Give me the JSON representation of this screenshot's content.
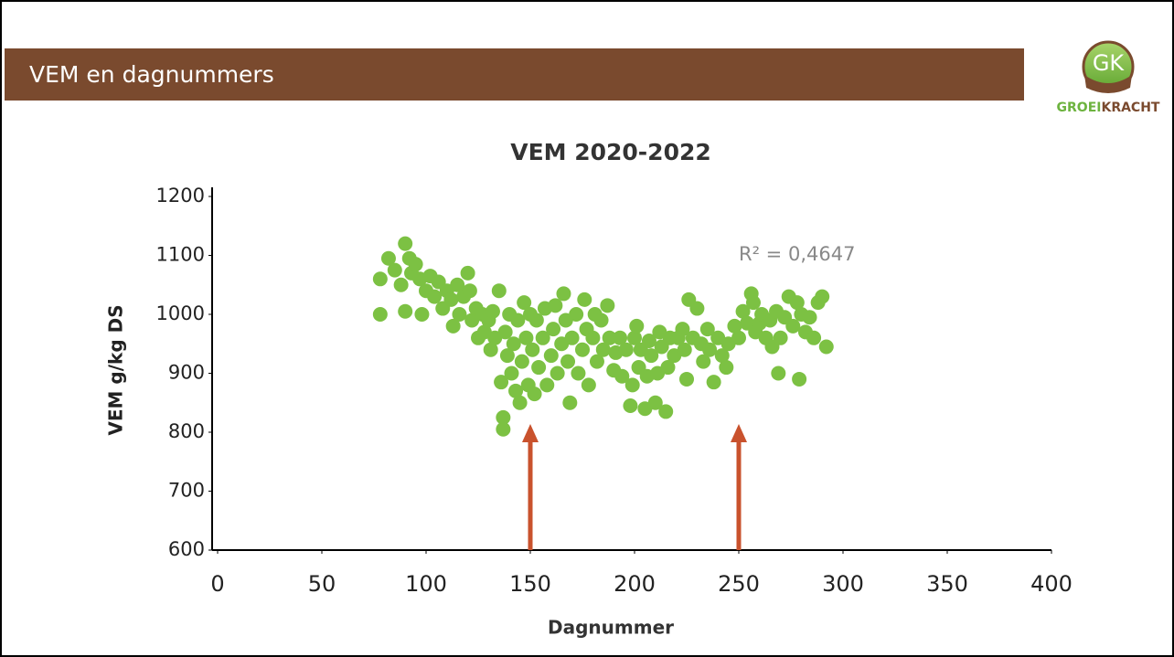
{
  "header": {
    "title": "VEM en dagnummers"
  },
  "logo": {
    "mark": "GK",
    "parts": [
      "GROEI",
      "KRACHT"
    ]
  },
  "chart_data": {
    "type": "scatter",
    "title": "VEM 2020-2022",
    "x_label": "Dagnummer",
    "y_label": "VEM g/kg DS",
    "annotation": "R² = 0,4647",
    "color": "#7cc143",
    "arrow_color": "#c9522d",
    "arrows_x": [
      150,
      250
    ],
    "xlim": [
      0,
      400
    ],
    "xticks": [
      0,
      50,
      100,
      150,
      200,
      250,
      300,
      350,
      400
    ],
    "ylim": [
      600,
      1200
    ],
    "yticks": [
      600,
      700,
      800,
      900,
      1000,
      1100,
      1200
    ],
    "x": [
      78,
      78,
      82,
      85,
      88,
      90,
      90,
      92,
      93,
      95,
      97,
      98,
      100,
      102,
      104,
      106,
      108,
      110,
      112,
      113,
      115,
      116,
      118,
      120,
      121,
      122,
      124,
      125,
      127,
      128,
      130,
      131,
      132,
      133,
      135,
      136,
      137,
      137,
      138,
      139,
      140,
      141,
      142,
      143,
      144,
      145,
      146,
      147,
      148,
      149,
      150,
      151,
      152,
      153,
      154,
      156,
      157,
      158,
      160,
      161,
      162,
      163,
      165,
      166,
      167,
      168,
      169,
      170,
      172,
      173,
      175,
      176,
      177,
      178,
      180,
      181,
      182,
      184,
      185,
      187,
      188,
      190,
      191,
      193,
      194,
      196,
      198,
      199,
      200,
      201,
      202,
      203,
      205,
      206,
      207,
      208,
      210,
      211,
      212,
      213,
      215,
      216,
      217,
      219,
      221,
      223,
      224,
      225,
      226,
      228,
      230,
      232,
      233,
      235,
      236,
      238,
      240,
      242,
      244,
      245,
      248,
      250,
      252,
      254,
      256,
      257,
      258,
      260,
      261,
      263,
      265,
      266,
      268,
      269,
      270,
      272,
      274,
      276,
      278,
      279,
      280,
      282,
      284,
      286,
      288,
      290,
      292
    ],
    "values": [
      1060,
      1000,
      1095,
      1075,
      1050,
      1120,
      1005,
      1095,
      1070,
      1085,
      1060,
      1000,
      1040,
      1065,
      1030,
      1055,
      1010,
      1040,
      1025,
      980,
      1050,
      1000,
      1030,
      1070,
      1040,
      990,
      1010,
      960,
      1000,
      970,
      990,
      940,
      1005,
      960,
      1040,
      885,
      825,
      805,
      970,
      930,
      1000,
      900,
      950,
      870,
      990,
      850,
      920,
      1020,
      960,
      880,
      1000,
      940,
      865,
      990,
      910,
      960,
      1010,
      880,
      930,
      975,
      1015,
      900,
      950,
      1035,
      990,
      920,
      850,
      960,
      1000,
      900,
      940,
      1025,
      975,
      880,
      960,
      1000,
      920,
      990,
      940,
      1015,
      960,
      905,
      935,
      960,
      895,
      940,
      845,
      880,
      960,
      980,
      910,
      940,
      840,
      895,
      955,
      930,
      850,
      900,
      970,
      945,
      835,
      910,
      960,
      930,
      960,
      975,
      940,
      890,
      1025,
      960,
      1010,
      950,
      920,
      975,
      940,
      885,
      960,
      930,
      910,
      950,
      980,
      960,
      1005,
      985,
      1035,
      1020,
      970,
      985,
      1000,
      960,
      990,
      945,
      1005,
      900,
      960,
      995,
      1030,
      980,
      1020,
      890,
      1000,
      970,
      995,
      960,
      1020,
      1030,
      945
    ]
  }
}
